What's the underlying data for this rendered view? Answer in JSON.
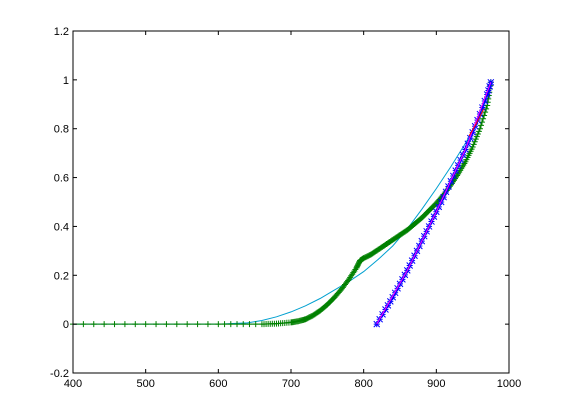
{
  "chart_data": {
    "type": "line",
    "title": "",
    "xlabel": "",
    "ylabel": "",
    "xlim": [
      400,
      1000
    ],
    "ylim": [
      -0.2,
      1.2
    ],
    "grid": false,
    "legend": "none",
    "x_ticks": [
      "400",
      "500",
      "600",
      "700",
      "800",
      "900",
      "1000"
    ],
    "y_ticks": [
      "-0.2",
      "0",
      "0.2",
      "0.4",
      "0.6",
      "0.8",
      "1",
      "1.2"
    ],
    "x_tick_values": [
      400,
      500,
      600,
      700,
      800,
      900,
      1000
    ],
    "y_tick_values": [
      -0.2,
      0,
      0.2,
      0.4,
      0.6,
      0.8,
      1.0,
      1.2
    ],
    "series": [
      {
        "color": "#00a0d0",
        "marker": "none",
        "x": [
          400,
          500,
          600,
          640,
          660,
          680,
          700,
          720,
          740,
          760,
          780,
          800,
          820,
          840,
          860,
          880,
          900,
          920,
          940,
          960,
          975
        ],
        "y": [
          0,
          0,
          0,
          0.005,
          0.015,
          0.03,
          0.05,
          0.075,
          0.105,
          0.14,
          0.175,
          0.215,
          0.265,
          0.32,
          0.39,
          0.47,
          0.555,
          0.645,
          0.74,
          0.845,
          0.985
        ]
      },
      {
        "color": "#008000",
        "marker": "plus",
        "x": [
          400,
          500,
          600,
          660,
          680,
          700,
          710,
          720,
          730,
          740,
          750,
          760,
          770,
          780,
          790,
          795,
          800,
          810,
          820,
          830,
          840,
          850,
          860,
          870,
          880,
          890,
          900,
          910,
          920,
          930,
          940,
          950,
          960,
          970,
          975
        ],
        "y": [
          0,
          0,
          0,
          0,
          0.002,
          0.007,
          0.012,
          0.02,
          0.035,
          0.055,
          0.08,
          0.11,
          0.145,
          0.185,
          0.23,
          0.26,
          0.27,
          0.285,
          0.305,
          0.325,
          0.345,
          0.365,
          0.385,
          0.41,
          0.435,
          0.465,
          0.495,
          0.53,
          0.57,
          0.615,
          0.665,
          0.725,
          0.8,
          0.895,
          0.99
        ]
      },
      {
        "color": "#0000ff",
        "marker": "star",
        "x": [
          818,
          830,
          840,
          850,
          860,
          870,
          880,
          890,
          900,
          910,
          920,
          930,
          940,
          950,
          960,
          970,
          975
        ],
        "y": [
          0,
          0.06,
          0.11,
          0.165,
          0.22,
          0.28,
          0.34,
          0.4,
          0.46,
          0.52,
          0.585,
          0.65,
          0.715,
          0.785,
          0.86,
          0.94,
          0.99
        ]
      },
      {
        "color": "#ff00ff",
        "marker": "none",
        "x": [
          818,
          860,
          900,
          940,
          975
        ],
        "y": [
          0,
          0.22,
          0.46,
          0.715,
          0.99
        ]
      },
      {
        "color": "#ff0000",
        "marker": "none",
        "x": [
          945,
          955,
          965
        ],
        "y": [
          0.77,
          0.82,
          0.88
        ]
      }
    ]
  }
}
